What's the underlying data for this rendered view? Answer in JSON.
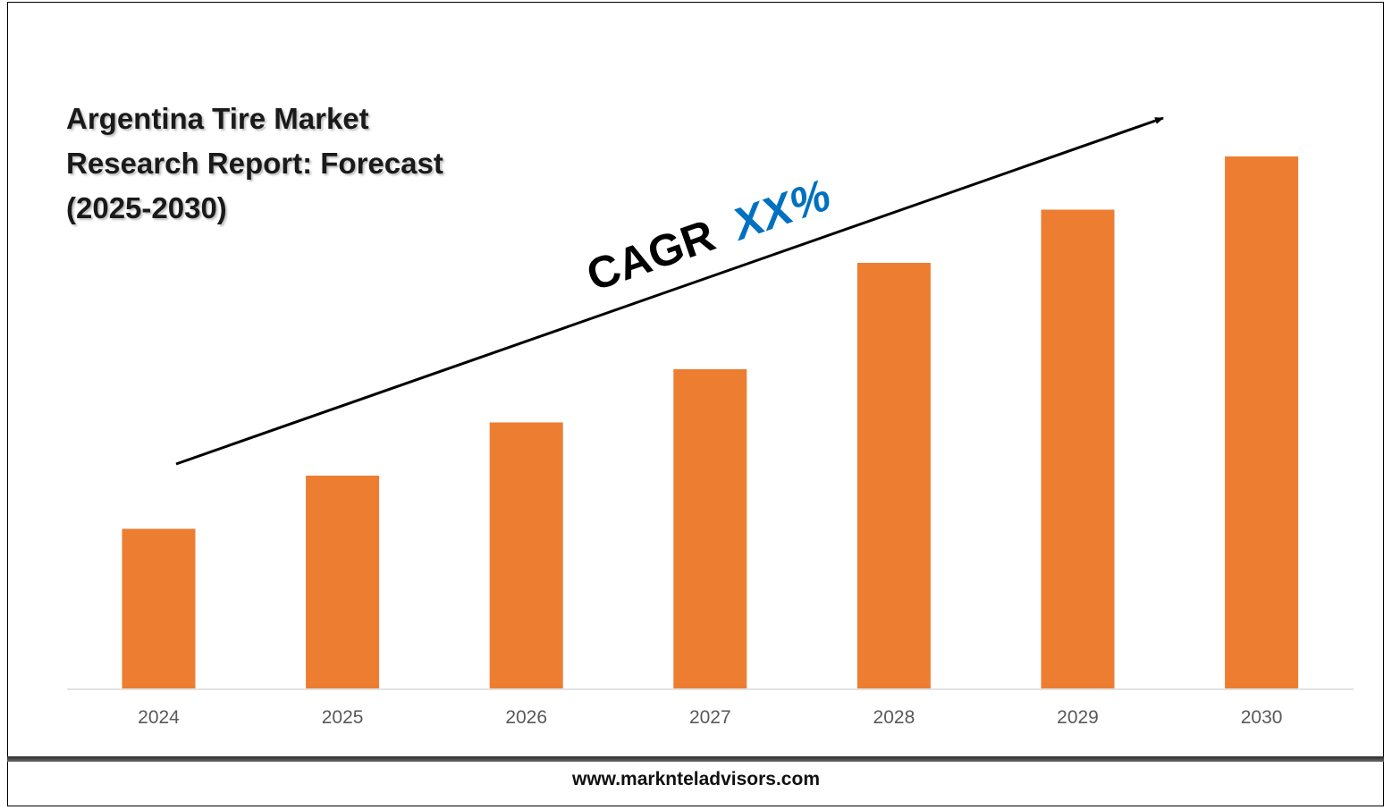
{
  "title_lines": [
    "Argentina Tire Market",
    "Research Report: Forecast",
    "(2025-2030)"
  ],
  "cagr": {
    "prefix": "CAGR",
    "value": "XX%"
  },
  "footer": {
    "url": "www.marknteladvisors.com"
  },
  "colors": {
    "bar": "#ED7D31",
    "cagr_value": "#0070C0",
    "text": "#000000",
    "tick": "#595959",
    "axis": "#D9D9D9"
  },
  "chart_data": {
    "type": "bar",
    "categories": [
      "2024",
      "2025",
      "2026",
      "2027",
      "2028",
      "2029",
      "2030"
    ],
    "values": [
      30,
      40,
      50,
      60,
      80,
      90,
      100
    ],
    "title": "Argentina Tire Market Research Report: Forecast (2025-2030)",
    "xlabel": "",
    "ylabel": "",
    "ylim": [
      0,
      100
    ],
    "grid": false,
    "legend": "none"
  }
}
